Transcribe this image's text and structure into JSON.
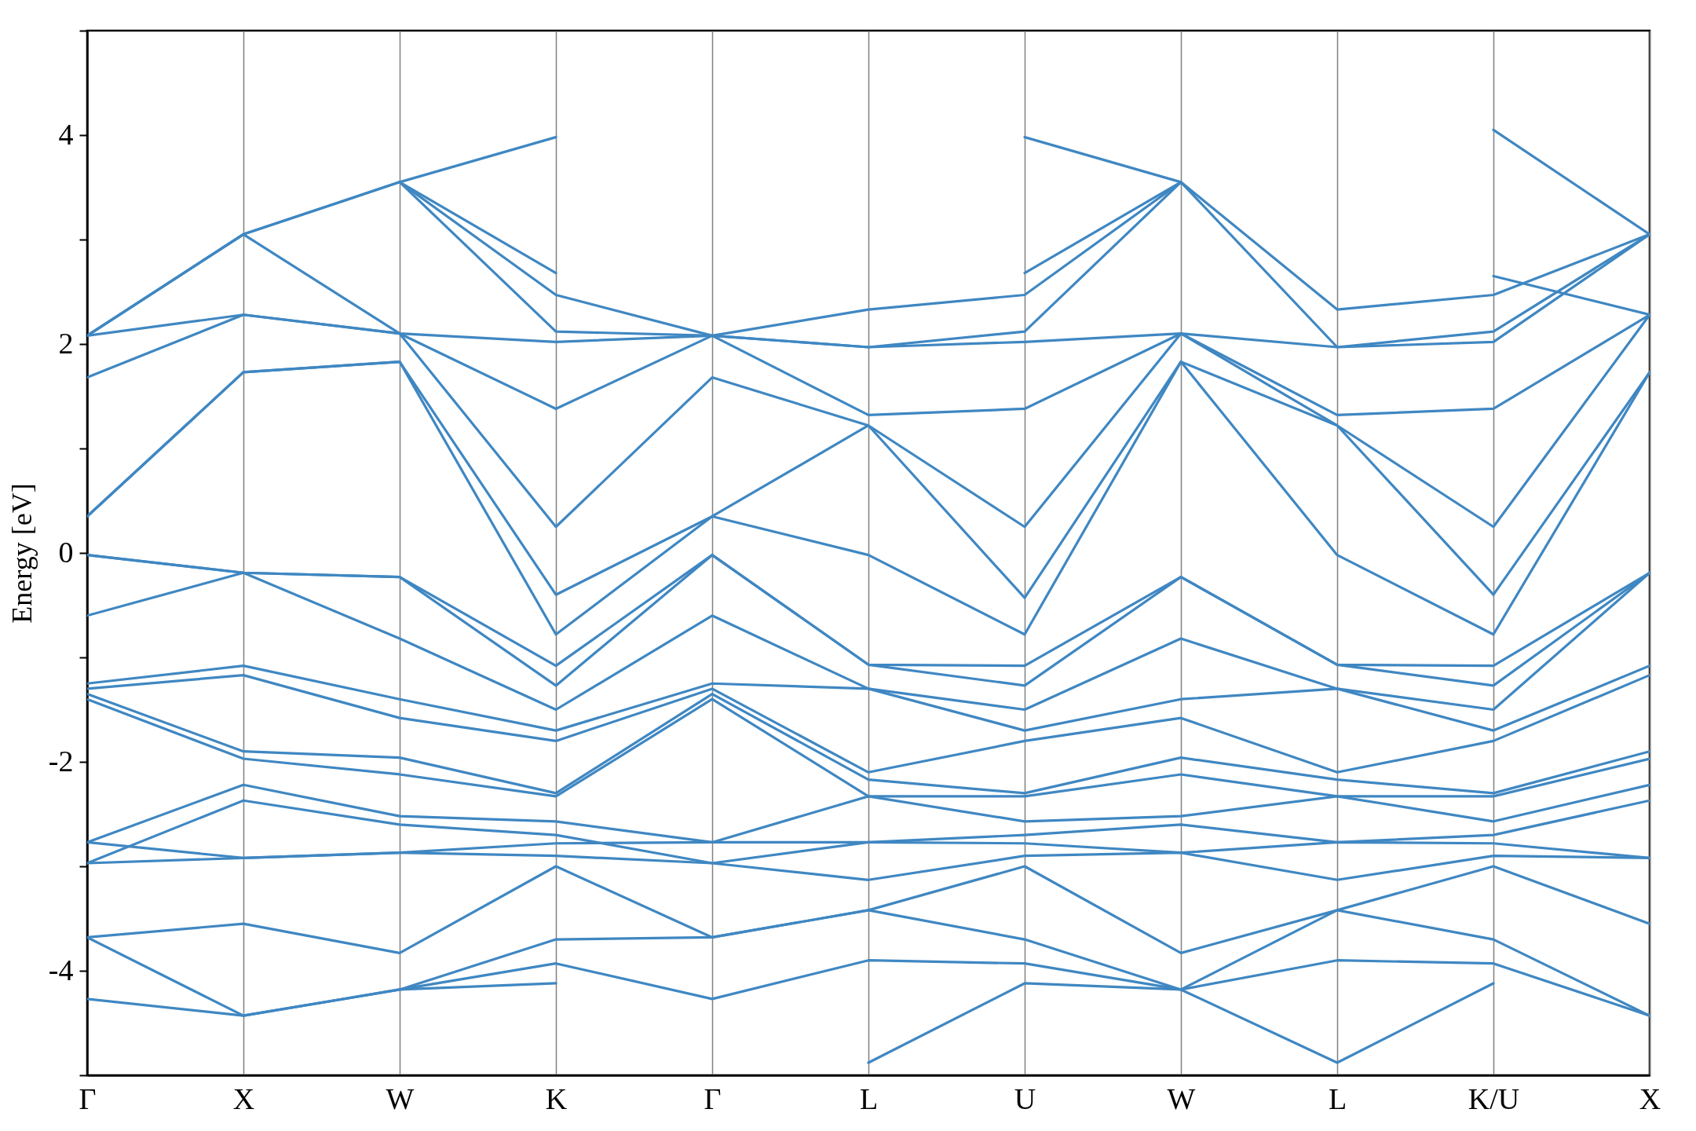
{
  "chart_data": {
    "type": "line",
    "ylabel": "Energy [eV]",
    "categories": [
      "Γ",
      "X",
      "W",
      "K",
      "Γ",
      "L",
      "U",
      "W",
      "L",
      "K/U",
      "X"
    ],
    "ylim": [
      -5,
      5
    ],
    "yticks": [
      {
        "value": -5,
        "label": null
      },
      -4,
      {
        "value": -3,
        "label": null
      },
      -2,
      {
        "value": -1,
        "label": null
      },
      0,
      {
        "value": 1,
        "label": null
      },
      2,
      {
        "value": 3,
        "label": null
      },
      4,
      {
        "value": 5,
        "label": null
      }
    ],
    "grid": "x",
    "legend": false,
    "line_style": "solid",
    "series": [
      {
        "color": "#3f87c2",
        "values": [
          null,
          null,
          -4.18,
          -4.12,
          null,
          -4.88,
          -4.12,
          -4.18,
          -4.88,
          -4.12,
          null
        ]
      },
      {
        "color": "#3f87c2",
        "values": [
          -4.27,
          -4.43,
          -4.18,
          -3.93,
          -4.27,
          -3.9,
          -3.93,
          -4.18,
          -3.9,
          -3.93,
          -4.43
        ]
      },
      {
        "color": "#3f87c2",
        "values": [
          -3.68,
          -4.43,
          -4.18,
          -3.7,
          -3.68,
          -3.42,
          -3.7,
          -4.18,
          -3.42,
          -3.7,
          -4.43
        ]
      },
      {
        "color": "#3f87c2",
        "values": [
          -3.68,
          -3.55,
          -3.83,
          -3.0,
          -3.68,
          -3.42,
          -3.0,
          -3.83,
          -3.42,
          -3.0,
          -3.55
        ]
      },
      {
        "color": "#3f87c2",
        "values": [
          -2.97,
          -2.92,
          -2.87,
          -2.9,
          -2.97,
          -3.13,
          -2.9,
          -2.87,
          -3.13,
          -2.9,
          -2.92
        ]
      },
      {
        "color": "#3f87c2",
        "values": [
          -2.77,
          -2.92,
          -2.87,
          -2.78,
          -2.77,
          -2.77,
          -2.78,
          -2.87,
          -2.77,
          -2.78,
          -2.92
        ]
      },
      {
        "color": "#3f87c2",
        "values": [
          -2.97,
          -2.37,
          -2.6,
          -2.7,
          -2.97,
          -2.77,
          -2.7,
          -2.6,
          -2.77,
          -2.7,
          -2.37
        ]
      },
      {
        "color": "#3f87c2",
        "values": [
          -2.77,
          -2.22,
          -2.52,
          -2.57,
          -2.77,
          -2.33,
          -2.57,
          -2.52,
          -2.33,
          -2.57,
          -2.22
        ]
      },
      {
        "color": "#3f87c2",
        "values": [
          -1.4,
          -1.97,
          -2.12,
          -2.33,
          -1.4,
          -2.33,
          -2.33,
          -2.12,
          -2.33,
          -2.33,
          -1.97
        ]
      },
      {
        "color": "#3f87c2",
        "values": [
          -1.35,
          -1.9,
          -1.96,
          -2.3,
          -1.35,
          -2.17,
          -2.3,
          -1.96,
          -2.17,
          -2.3,
          -1.9
        ]
      },
      {
        "color": "#3f87c2",
        "values": [
          -1.3,
          -1.17,
          -1.58,
          -1.8,
          -1.3,
          -2.1,
          -1.8,
          -1.58,
          -2.1,
          -1.8,
          -1.17
        ]
      },
      {
        "color": "#3f87c2",
        "values": [
          -1.25,
          -1.08,
          -1.4,
          -1.7,
          -1.25,
          -1.3,
          -1.7,
          -1.4,
          -1.3,
          -1.7,
          -1.08
        ]
      },
      {
        "color": "#3f87c2",
        "values": [
          -0.6,
          -0.19,
          -0.82,
          -1.5,
          -0.6,
          -1.3,
          -1.5,
          -0.82,
          -1.3,
          -1.5,
          -0.19
        ]
      },
      {
        "color": "#3f87c2",
        "values": [
          -0.02,
          -0.19,
          -0.23,
          -1.27,
          -0.02,
          -1.07,
          -1.27,
          -0.23,
          -1.07,
          -1.27,
          -0.19
        ]
      },
      {
        "color": "#3f87c2",
        "values": [
          -0.02,
          -0.19,
          -0.23,
          -1.08,
          -0.02,
          -1.07,
          -1.08,
          -0.23,
          -1.07,
          -1.08,
          -0.19
        ]
      },
      {
        "color": "#3f87c2",
        "values": [
          0.35,
          1.73,
          1.83,
          -0.78,
          0.35,
          -0.02,
          -0.78,
          1.83,
          -0.02,
          -0.78,
          1.73
        ]
      },
      {
        "color": "#3f87c2",
        "values": [
          0.35,
          1.73,
          1.83,
          -0.4,
          0.35,
          1.22,
          -0.43,
          1.83,
          1.22,
          -0.4,
          1.73
        ]
      },
      {
        "color": "#3f87c2",
        "values": [
          1.68,
          2.28,
          2.1,
          0.25,
          1.68,
          1.22,
          0.25,
          2.1,
          1.22,
          0.25,
          2.28
        ]
      },
      {
        "color": "#3f87c2",
        "values": [
          2.08,
          2.28,
          2.1,
          1.38,
          2.08,
          1.32,
          1.38,
          2.1,
          1.32,
          1.38,
          2.28
        ]
      },
      {
        "color": "#3f87c2",
        "values": [
          2.08,
          3.05,
          2.1,
          2.02,
          2.08,
          1.97,
          2.02,
          2.1,
          1.97,
          2.02,
          3.05
        ]
      },
      {
        "color": "#3f87c2",
        "values": [
          2.08,
          3.05,
          3.55,
          2.12,
          2.08,
          1.97,
          2.12,
          3.55,
          1.97,
          2.12,
          3.05
        ]
      },
      {
        "color": "#3f87c2",
        "values": [
          2.08,
          3.05,
          3.55,
          2.47,
          2.08,
          2.33,
          2.47,
          3.55,
          2.33,
          2.47,
          3.05
        ]
      },
      {
        "color": "#3f87c2",
        "values": [
          null,
          null,
          3.55,
          2.68,
          null,
          null,
          2.68,
          3.55,
          null,
          2.65,
          2.28
        ]
      },
      {
        "color": "#3f87c2",
        "values": [
          null,
          null,
          3.55,
          3.98,
          null,
          null,
          3.98,
          3.55,
          null,
          4.05,
          3.05
        ]
      }
    ]
  }
}
